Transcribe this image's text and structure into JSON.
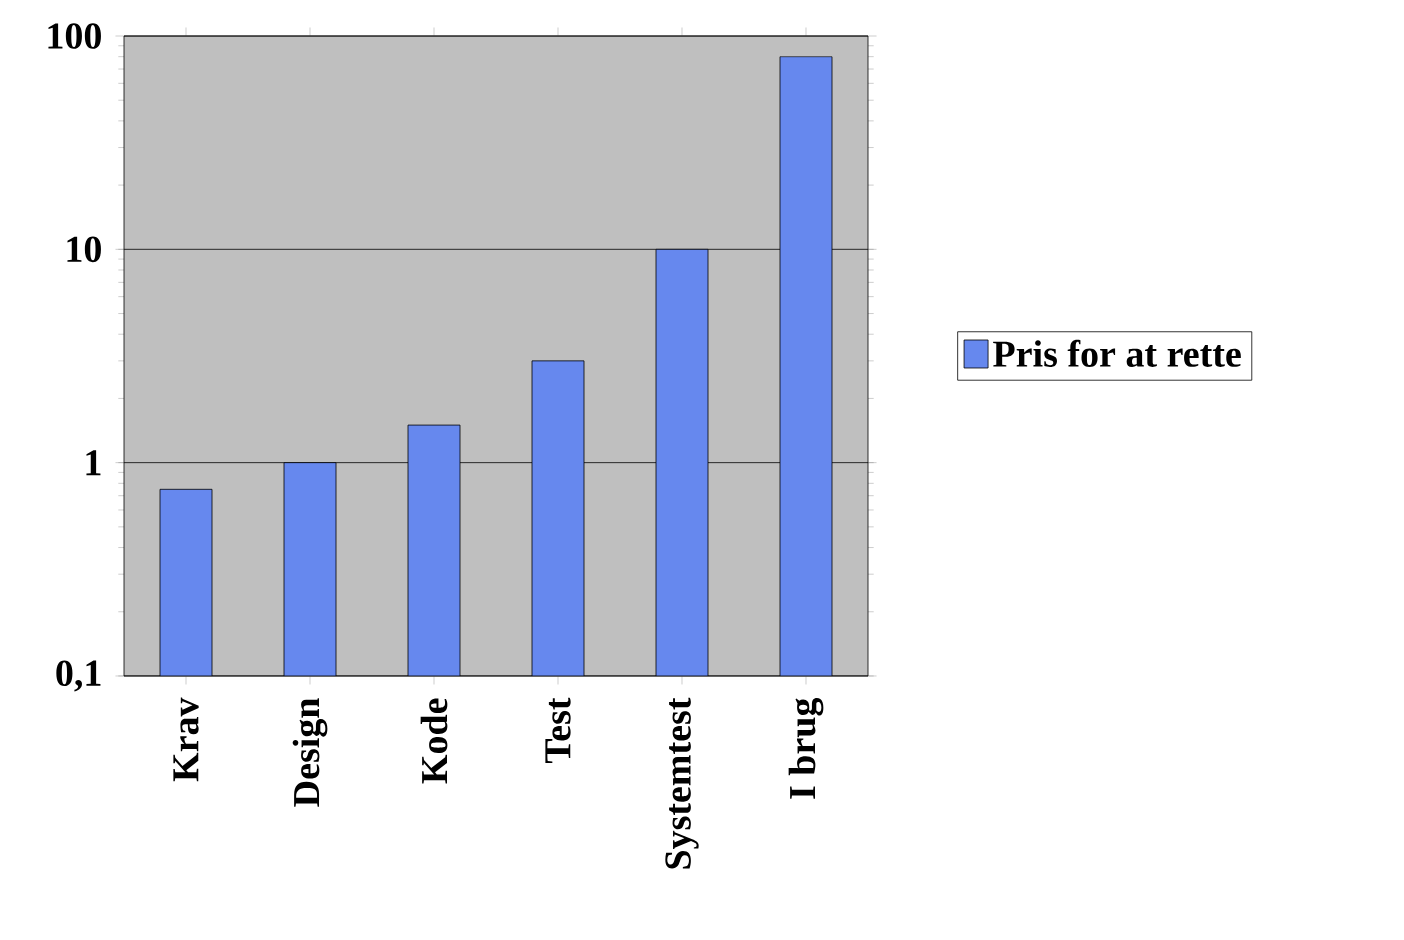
{
  "chart_data": {
    "type": "bar",
    "categories": [
      "Krav",
      "Design",
      "Kode",
      "Test",
      "Systemtest",
      "I brug"
    ],
    "series": [
      {
        "name": "Pris for at rette",
        "color": "#6688ee",
        "values": [
          0.75,
          1,
          1.5,
          3,
          10,
          80
        ]
      }
    ],
    "log": "y",
    "ylim": [
      0.1,
      100
    ],
    "yticks": [
      {
        "value": 0.1,
        "label": "0,1"
      },
      1,
      10,
      100
    ],
    "grid": "y",
    "legend": "right"
  }
}
